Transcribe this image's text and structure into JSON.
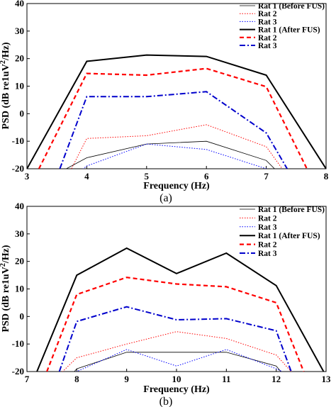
{
  "chart_data": [
    {
      "type": "line",
      "panel_label": "(a)",
      "xlabel": "Frequency (Hz)",
      "ylabel_main": "PSD (dB re1uV",
      "ylabel_sup": "2",
      "ylabel_tail": "/Hz)",
      "xlim": [
        3,
        8
      ],
      "ylim": [
        -20,
        40
      ],
      "xticks": [
        "3",
        "4",
        "5",
        "6",
        "7",
        "8"
      ],
      "yticks": [
        "-20",
        "-10",
        "0",
        "10",
        "20",
        "30",
        "40"
      ],
      "legend_position": "top-right",
      "grid": false,
      "series": [
        {
          "name": "Rat 1 (Before FUS)",
          "color": "#000000",
          "style": "solid-thin",
          "x": [
            2.8,
            4,
            5,
            6,
            7,
            7.6
          ],
          "y": [
            -30,
            -16,
            -11,
            -10,
            -17,
            -30
          ]
        },
        {
          "name": "Rat 2",
          "color": "#ff0000",
          "style": "dotted",
          "x": [
            3.65,
            4,
            5,
            6,
            7,
            7.4
          ],
          "y": [
            -24,
            -9,
            -8,
            -4,
            -12,
            -24
          ]
        },
        {
          "name": "Rat 3",
          "color": "#0000ff",
          "style": "dotted",
          "x": [
            3.7,
            4,
            5,
            6,
            7,
            7.3
          ],
          "y": [
            -24,
            -19,
            -11,
            -13,
            -20,
            -24
          ]
        },
        {
          "name": "Rat 1 (After FUS)",
          "color": "#000000",
          "style": "solid",
          "x": [
            3.0,
            4,
            5,
            6,
            7,
            8.0
          ],
          "y": [
            -20,
            19,
            21.3,
            20.8,
            14,
            -20
          ]
        },
        {
          "name": "Rat 2",
          "color": "#ff0000",
          "style": "dashed",
          "x": [
            3.2,
            4,
            5,
            6,
            7,
            7.68
          ],
          "y": [
            -20,
            14.6,
            14,
            16.4,
            9.8,
            -20
          ]
        },
        {
          "name": "Rat 3",
          "color": "#0000cc",
          "style": "dashdot",
          "x": [
            3.55,
            4,
            5,
            6,
            7,
            7.35
          ],
          "y": [
            -20,
            6.2,
            6.2,
            8,
            -7,
            -20
          ]
        }
      ]
    },
    {
      "type": "line",
      "panel_label": "(b)",
      "xlabel": "Frequency (Hz)",
      "ylabel_main": "PSD (dB re1uV",
      "ylabel_sup": "2",
      "ylabel_tail": "/Hz)",
      "xlim": [
        7,
        13
      ],
      "ylim": [
        -20,
        40
      ],
      "xticks": [
        "7",
        "8",
        "9",
        "10",
        "11",
        "12",
        "13"
      ],
      "yticks": [
        "-20",
        "-10",
        "0",
        "10",
        "20",
        "30",
        "40"
      ],
      "legend_position": "top-right",
      "grid": false,
      "series": [
        {
          "name": "Rat 1 (Before FUS)",
          "color": "#000000",
          "style": "solid-thin",
          "x": [
            7.0,
            8,
            9,
            10,
            11,
            12,
            13.0
          ],
          "y": [
            -40,
            -19,
            -13,
            -13,
            -13,
            -18,
            -40
          ]
        },
        {
          "name": "Rat 2",
          "color": "#ff0000",
          "style": "dotted",
          "x": [
            7.6,
            8,
            9,
            10,
            11,
            12,
            12.4
          ],
          "y": [
            -22,
            -15,
            -10,
            -5.5,
            -8,
            -14,
            -22
          ]
        },
        {
          "name": "Rat 3",
          "color": "#0000ff",
          "style": "dotted",
          "x": [
            7.65,
            8,
            9,
            10,
            11,
            12,
            12.35
          ],
          "y": [
            -22,
            -20,
            -12,
            -18,
            -12,
            -19,
            -22
          ]
        },
        {
          "name": "Rat 1 (After FUS)",
          "color": "#000000",
          "style": "solid",
          "x": [
            7.2,
            8,
            9,
            10,
            11,
            12,
            12.95
          ],
          "y": [
            -20,
            15,
            24.8,
            15.6,
            23,
            11.2,
            -20
          ]
        },
        {
          "name": "Rat 2",
          "color": "#ff0000",
          "style": "dashed",
          "x": [
            7.4,
            8,
            9,
            10,
            11,
            12,
            12.55
          ],
          "y": [
            -20,
            8,
            14.2,
            11.8,
            10.8,
            5,
            -20
          ]
        },
        {
          "name": "Rat 3",
          "color": "#0000cc",
          "style": "dashdot",
          "x": [
            7.65,
            8,
            9,
            10,
            11,
            12,
            12.3
          ],
          "y": [
            -20,
            -1.8,
            3.5,
            -1.2,
            -0.8,
            -5.2,
            -20
          ]
        }
      ]
    }
  ]
}
